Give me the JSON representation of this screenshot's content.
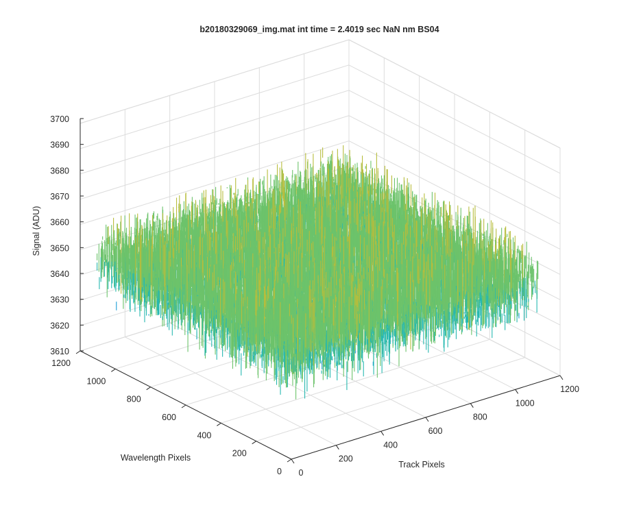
{
  "chart_data": {
    "type": "surface",
    "title": "b20180329069_img.mat int time = 2.4019 sec  NaN nm BS04",
    "xlabel": "Track Pixels",
    "ylabel": "Wavelength Pixels",
    "zlabel": "Signal (ADU)",
    "xlim": [
      0,
      1200
    ],
    "ylim": [
      0,
      1200
    ],
    "zlim": [
      3610,
      3700
    ],
    "xticks": [
      "0",
      "200",
      "400",
      "600",
      "800",
      "1000",
      "1200"
    ],
    "yticks": [
      "0",
      "200",
      "400",
      "600",
      "800",
      "1000",
      "1200"
    ],
    "zticks": [
      "3610",
      "3620",
      "3630",
      "3640",
      "3650",
      "3660",
      "3670",
      "3680",
      "3690",
      "3700"
    ],
    "grid": true,
    "colormap": "parula",
    "colors": [
      "#0072BD",
      "#1A9FD6",
      "#26B8B0",
      "#6CC36B",
      "#B7BD3C",
      "#EDB930"
    ],
    "data_summary": {
      "track_pixel_range": [
        0,
        1100
      ],
      "wavelength_pixel_range": [
        0,
        1100
      ],
      "mean_signal": 3650,
      "signal_min_approx": 3612,
      "signal_max_approx": 3690
    }
  }
}
